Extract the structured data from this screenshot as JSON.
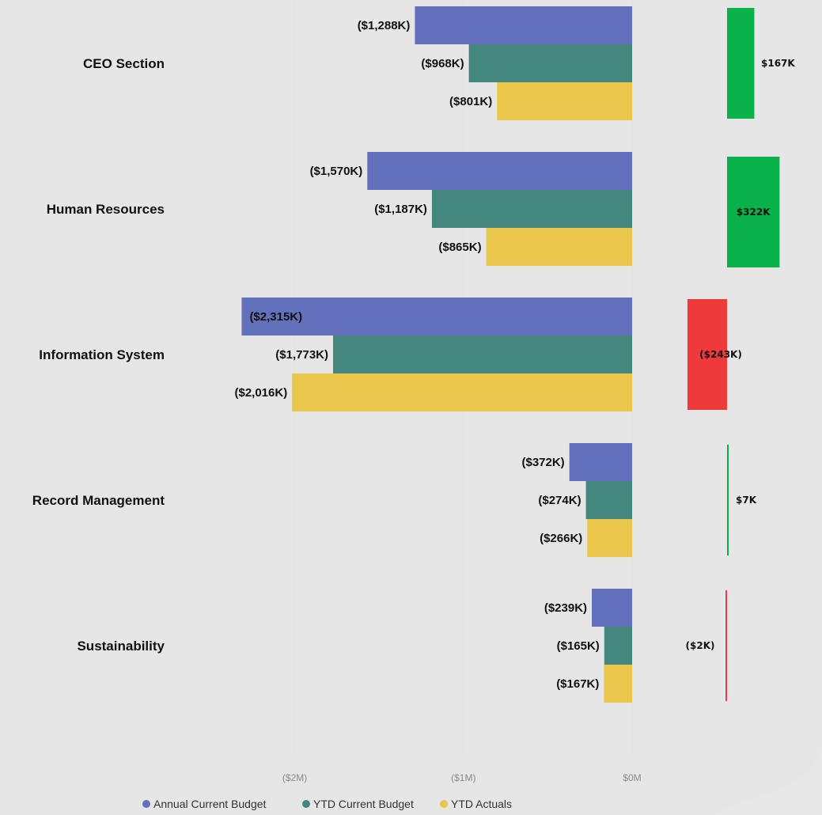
{
  "chart_data": [
    {
      "type": "bar",
      "orientation": "horizontal",
      "categories": [
        "CEO Section",
        "Human Resources",
        "Information System",
        "Record Management",
        "Sustainability"
      ],
      "series": [
        {
          "name": "Annual Current Budget",
          "color": "#6370bb",
          "values": [
            -1288,
            -1570,
            -2315,
            -372,
            -239
          ],
          "labels": [
            "($1,288K)",
            "($1,570K)",
            "($2,315K)",
            "($372K)",
            "($239K)"
          ]
        },
        {
          "name": "YTD Current Budget",
          "color": "#43877e",
          "values": [
            -968,
            -1187,
            -1773,
            -274,
            -165
          ],
          "labels": [
            "($968K)",
            "($1,187K)",
            "($1,773K)",
            "($274K)",
            "($165K)"
          ]
        },
        {
          "name": "YTD Actuals",
          "color": "#eac64a",
          "values": [
            -801,
            -865,
            -2016,
            -266,
            -167
          ],
          "labels": [
            "($801K)",
            "($865K)",
            "($2,016K)",
            "($266K)",
            "($167K)"
          ]
        }
      ],
      "unit": "K",
      "xlim": [
        -2315,
        0
      ],
      "xticks": [
        {
          "value": -2000,
          "label": "($2M)"
        },
        {
          "value": -1000,
          "label": "($1M)"
        },
        {
          "value": 0,
          "label": "$0M"
        }
      ],
      "grid": true,
      "legend": "bottom"
    },
    {
      "type": "bar",
      "orientation": "horizontal",
      "categories": [
        "CEO Section",
        "Human Resources",
        "Information System",
        "Record Management",
        "Sustainability"
      ],
      "values": [
        167,
        322,
        -243,
        7,
        -2
      ],
      "labels": [
        "$167K",
        "$322K",
        "($243K)",
        "$7K",
        "($2K)"
      ],
      "positive_color": "#0ab14b",
      "negative_color": "#ee3a3a"
    }
  ]
}
